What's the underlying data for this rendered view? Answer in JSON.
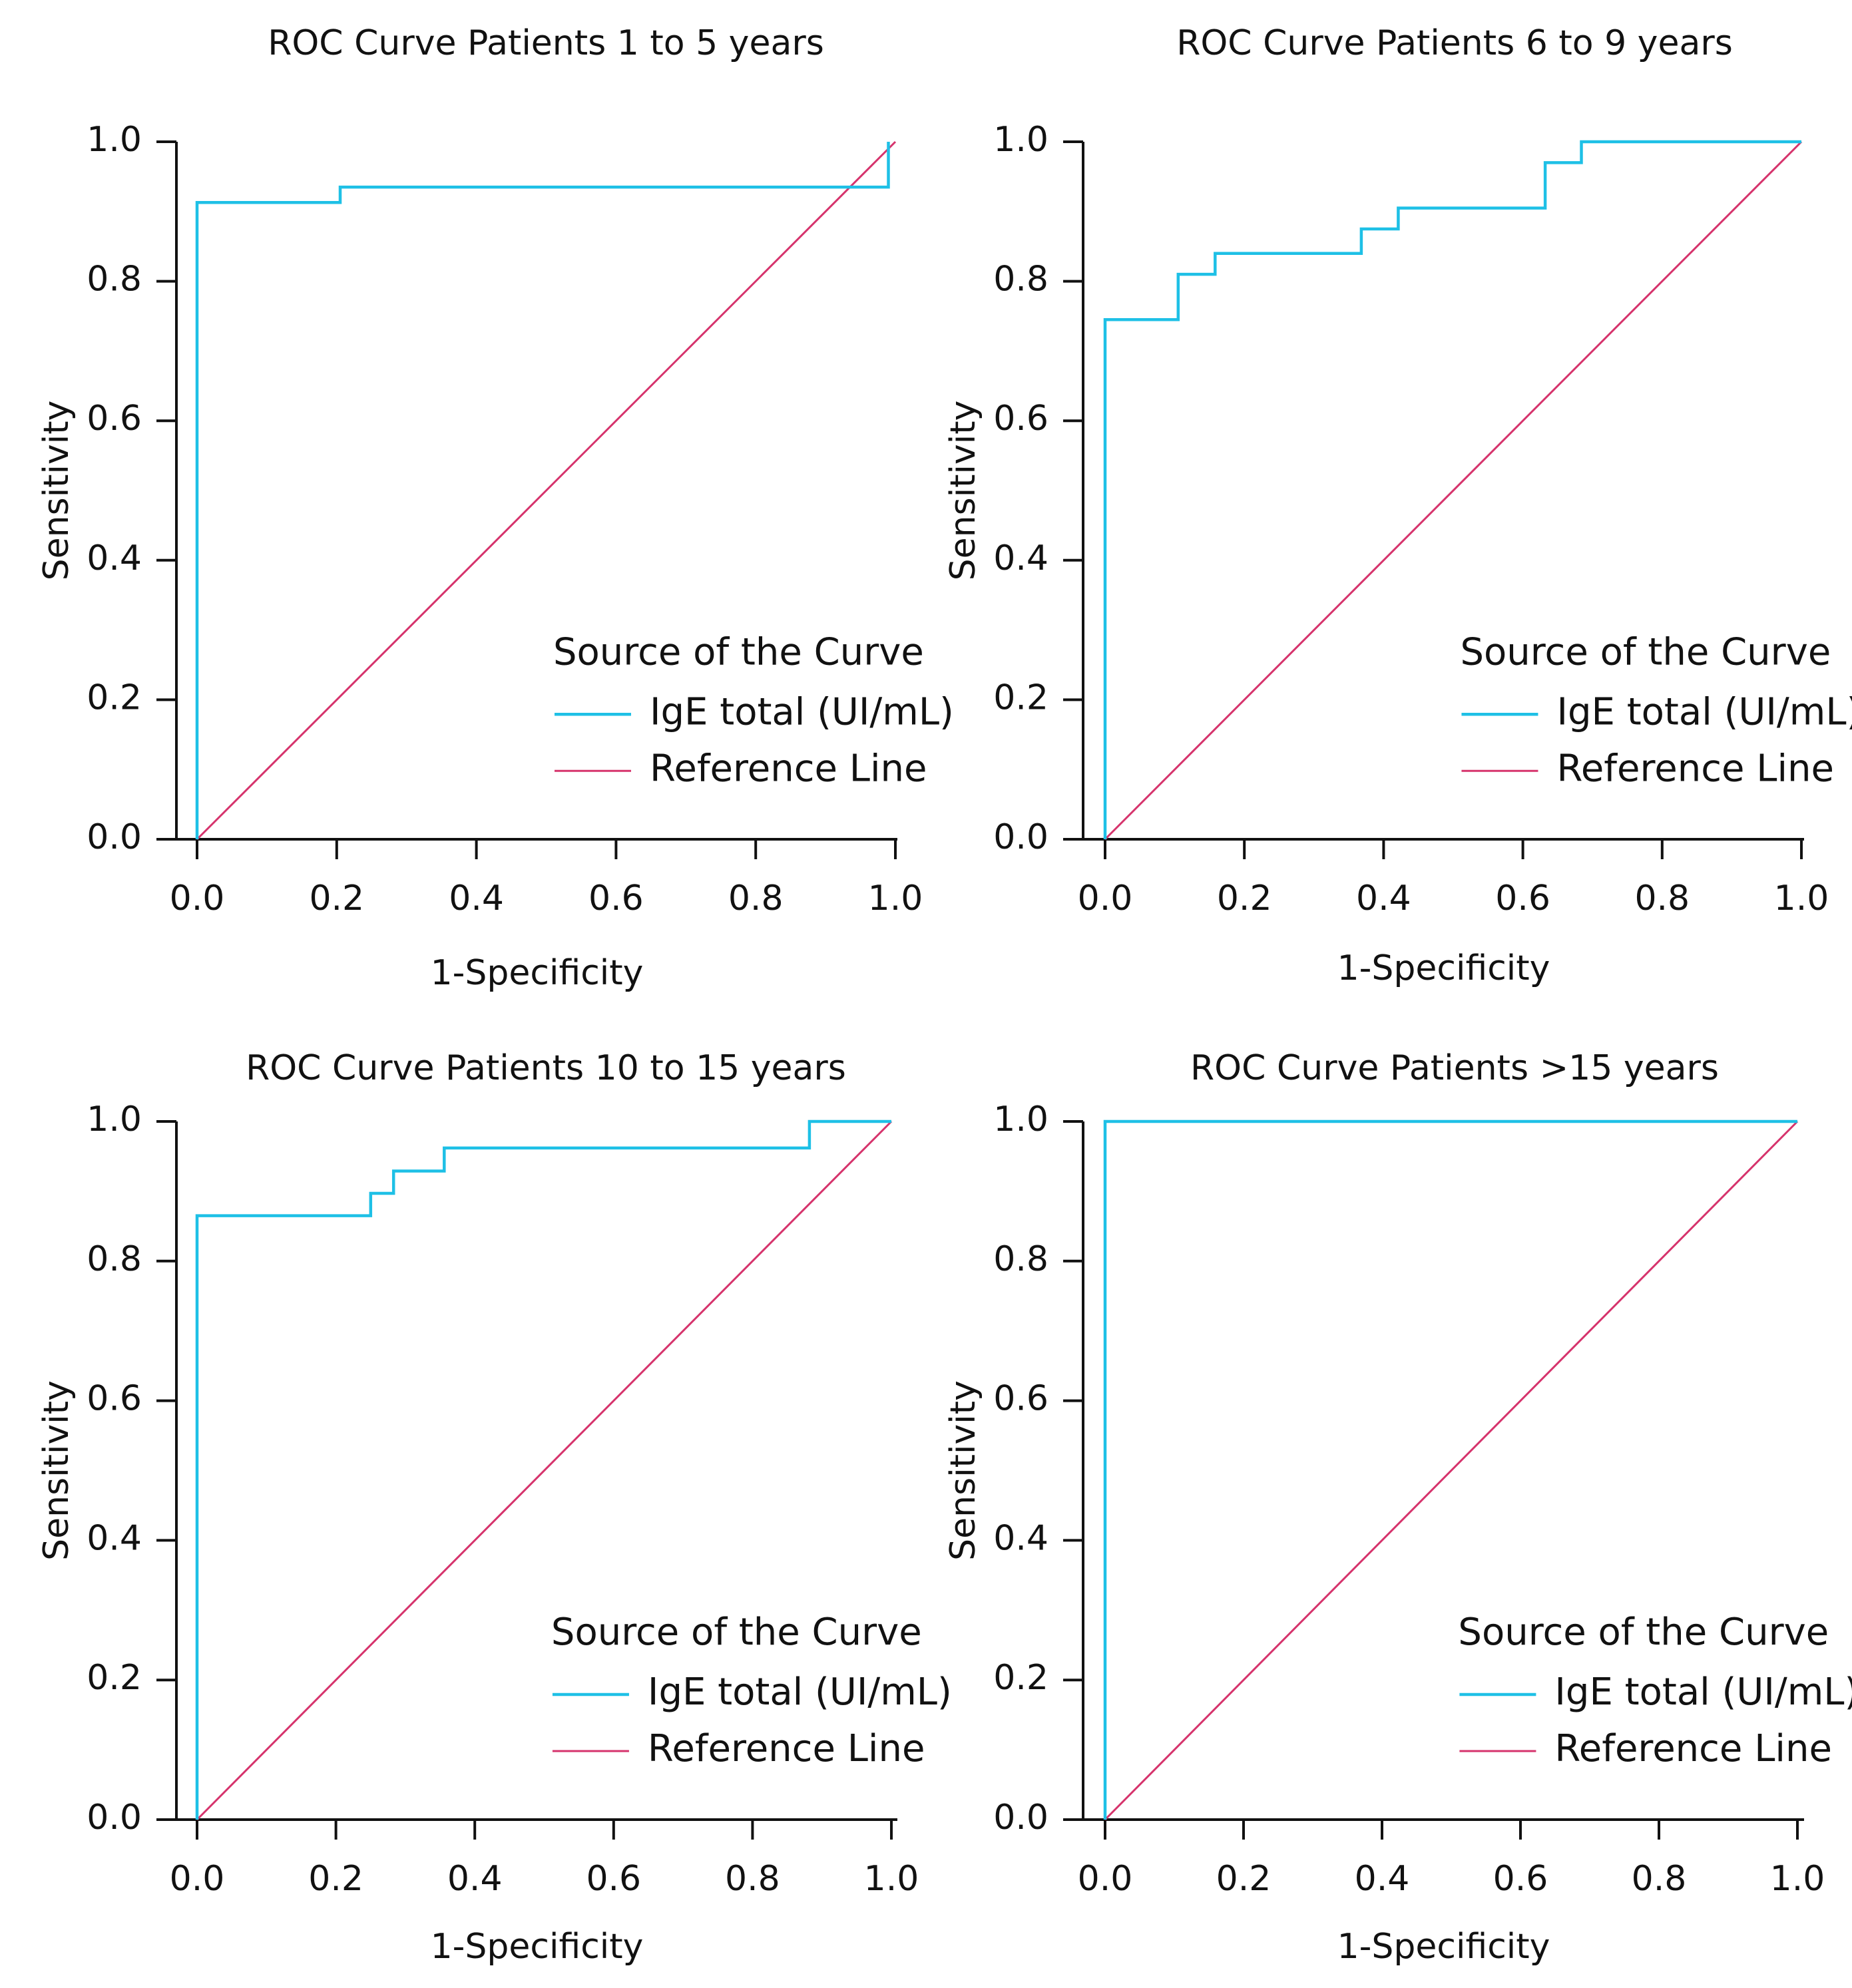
{
  "chart_data": [
    {
      "type": "line",
      "title": "ROC Curve Patients 1 to 5 years",
      "xlabel": "1-Specificity",
      "ylabel": "Sensitivity",
      "xlim": [
        0,
        1
      ],
      "ylim": [
        0,
        1
      ],
      "ticks": [
        "0.0",
        "0.2",
        "0.4",
        "0.6",
        "0.8",
        "1.0"
      ],
      "legend": {
        "title": "Source of the Curve",
        "placement": "bottom-right"
      },
      "series": [
        {
          "name": "IgE total (UI/mL)",
          "color": "#1ec0e6",
          "x": [
            0,
            0,
            0.205,
            0.205,
            0.99,
            0.99
          ],
          "y": [
            0,
            0.913,
            0.913,
            0.935,
            0.935,
            1.0
          ]
        },
        {
          "name": "Reference Line",
          "color": "#d6336c",
          "x": [
            0,
            1
          ],
          "y": [
            0,
            1
          ]
        }
      ]
    },
    {
      "type": "line",
      "title": "ROC Curve Patients 6 to 9 years",
      "xlabel": "1-Specificity",
      "ylabel": "Sensitivity",
      "xlim": [
        0,
        1
      ],
      "ylim": [
        0,
        1
      ],
      "ticks": [
        "0.0",
        "0.2",
        "0.4",
        "0.6",
        "0.8",
        "1.0"
      ],
      "legend": {
        "title": "Source of the Curve",
        "placement": "bottom-right"
      },
      "series": [
        {
          "name": "IgE total (UI/mL)",
          "color": "#1ec0e6",
          "x": [
            0,
            0,
            0.105,
            0.105,
            0.158,
            0.158,
            0.368,
            0.368,
            0.421,
            0.421,
            0.632,
            0.632,
            0.684,
            0.684,
            1.0
          ],
          "y": [
            0,
            0.745,
            0.745,
            0.81,
            0.81,
            0.84,
            0.84,
            0.875,
            0.875,
            0.905,
            0.905,
            0.97,
            0.97,
            1.0,
            1.0
          ]
        },
        {
          "name": "Reference Line",
          "color": "#d6336c",
          "x": [
            0,
            1
          ],
          "y": [
            0,
            1
          ]
        }
      ]
    },
    {
      "type": "line",
      "title": "ROC Curve Patients 10 to 15 years",
      "xlabel": "1-Specificity",
      "ylabel": "Sensitivity",
      "xlim": [
        0,
        1
      ],
      "ylim": [
        0,
        1
      ],
      "ticks": [
        "0.0",
        "0.2",
        "0.4",
        "0.6",
        "0.8",
        "1.0"
      ],
      "legend": {
        "title": "Source of the Curve",
        "placement": "bottom-right"
      },
      "series": [
        {
          "name": "IgE total (UI/mL)",
          "color": "#1ec0e6",
          "x": [
            0,
            0,
            0.25,
            0.25,
            0.283,
            0.283,
            0.356,
            0.356,
            0.882,
            0.882,
            1.0
          ],
          "y": [
            0,
            0.865,
            0.865,
            0.897,
            0.897,
            0.929,
            0.929,
            0.962,
            0.962,
            1.0,
            1.0
          ]
        },
        {
          "name": "Reference Line",
          "color": "#d6336c",
          "x": [
            0,
            1
          ],
          "y": [
            0,
            1
          ]
        }
      ]
    },
    {
      "type": "line",
      "title": "ROC Curve Patients >15 years",
      "xlabel": "1-Specificity",
      "ylabel": "Sensitivity",
      "xlim": [
        0,
        1
      ],
      "ylim": [
        0,
        1
      ],
      "ticks": [
        "0.0",
        "0.2",
        "0.4",
        "0.6",
        "0.8",
        "1.0"
      ],
      "legend": {
        "title": "Source of the Curve",
        "placement": "bottom-right"
      },
      "series": [
        {
          "name": "IgE total (UI/mL)",
          "color": "#1ec0e6",
          "x": [
            0,
            0,
            1.0
          ],
          "y": [
            0,
            1.0,
            1.0
          ]
        },
        {
          "name": "Reference Line",
          "color": "#d6336c",
          "x": [
            0,
            1
          ],
          "y": [
            0,
            1
          ]
        }
      ]
    }
  ]
}
